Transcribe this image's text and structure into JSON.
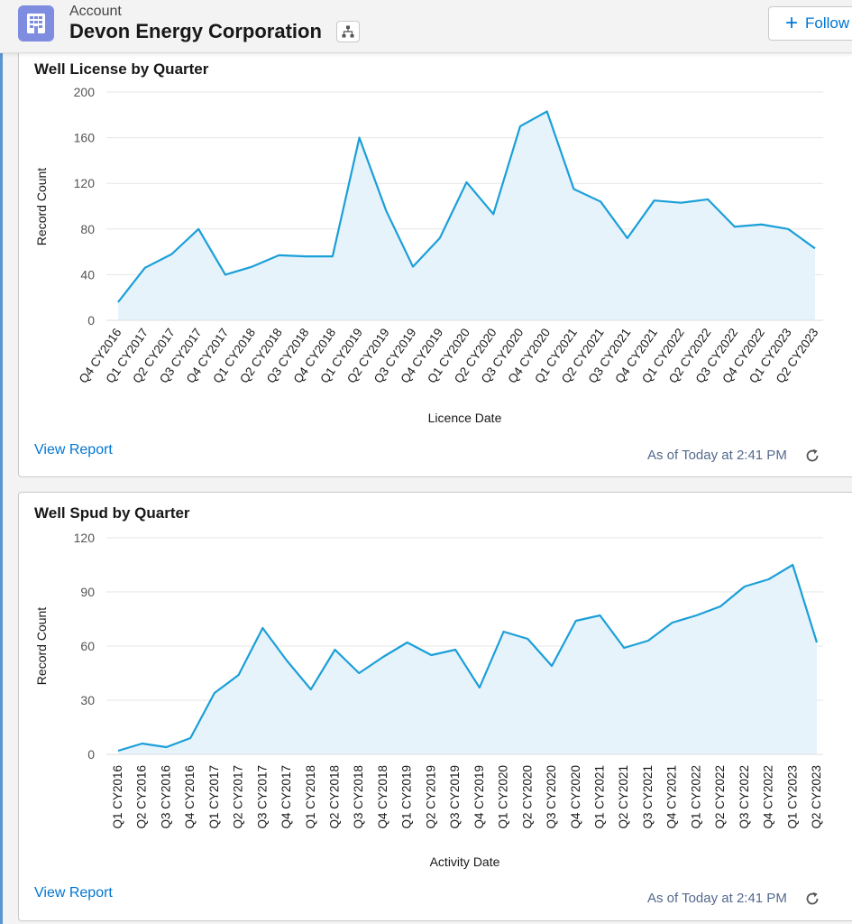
{
  "header": {
    "object_label": "Account",
    "record_name": "Devon Energy Corporation",
    "follow_label": "Follow",
    "icons": [
      "account-building-icon",
      "hierarchy-icon",
      "plus-icon"
    ]
  },
  "cards": [
    {
      "title": "Well License by Quarter",
      "view_report": "View Report",
      "as_of": "As of Today at 2:41 PM",
      "colors": {
        "line": "#1b9fd8",
        "fill": "#e6f3fb"
      }
    },
    {
      "title": "Well Spud by Quarter",
      "view_report": "View Report",
      "as_of": "As of Today at 2:41 PM",
      "colors": {
        "line": "#1b9fd8",
        "fill": "#e6f3fb"
      }
    }
  ],
  "chart_data": [
    {
      "type": "area",
      "xlabel": "Licence Date",
      "ylabel": "Record Count",
      "ylim": [
        0,
        200
      ],
      "yticks": [
        0,
        40,
        80,
        120,
        160,
        200
      ],
      "grid": true,
      "categories": [
        "Q4 CY2016",
        "Q1 CY2017",
        "Q2 CY2017",
        "Q3 CY2017",
        "Q4 CY2017",
        "Q1 CY2018",
        "Q2 CY2018",
        "Q3 CY2018",
        "Q4 CY2018",
        "Q1 CY2019",
        "Q2 CY2019",
        "Q3 CY2019",
        "Q4 CY2019",
        "Q1 CY2020",
        "Q2 CY2020",
        "Q3 CY2020",
        "Q4 CY2020",
        "Q1 CY2021",
        "Q2 CY2021",
        "Q3 CY2021",
        "Q4 CY2021",
        "Q1 CY2022",
        "Q2 CY2022",
        "Q3 CY2022",
        "Q4 CY2022",
        "Q1 CY2023",
        "Q2 CY2023"
      ],
      "values": [
        16,
        46,
        58,
        80,
        40,
        47,
        57,
        56,
        56,
        160,
        96,
        47,
        72,
        121,
        93,
        170,
        183,
        115,
        104,
        72,
        105,
        103,
        106,
        82,
        84,
        80,
        63
      ]
    },
    {
      "type": "area",
      "xlabel": "Activity Date",
      "ylabel": "Record Count",
      "ylim": [
        0,
        120
      ],
      "yticks": [
        0,
        30,
        60,
        90,
        120
      ],
      "grid": true,
      "categories": [
        "Q1 CY2016",
        "Q2 CY2016",
        "Q3 CY2016",
        "Q4 CY2016",
        "Q1 CY2017",
        "Q2 CY2017",
        "Q3 CY2017",
        "Q4 CY2017",
        "Q1 CY2018",
        "Q2 CY2018",
        "Q3 CY2018",
        "Q4 CY2018",
        "Q1 CY2019",
        "Q2 CY2019",
        "Q3 CY2019",
        "Q4 CY2019",
        "Q1 CY2020",
        "Q2 CY2020",
        "Q3 CY2020",
        "Q4 CY2020",
        "Q1 CY2021",
        "Q2 CY2021",
        "Q3 CY2021",
        "Q4 CY2021",
        "Q1 CY2022",
        "Q2 CY2022",
        "Q3 CY2022",
        "Q4 CY2022",
        "Q1 CY2023",
        "Q2 CY2023"
      ],
      "values": [
        2,
        6,
        4,
        9,
        34,
        44,
        70,
        52,
        36,
        58,
        45,
        54,
        62,
        55,
        58,
        37,
        68,
        64,
        49,
        74,
        77,
        59,
        63,
        73,
        77,
        82,
        93,
        97,
        105,
        62
      ]
    }
  ]
}
